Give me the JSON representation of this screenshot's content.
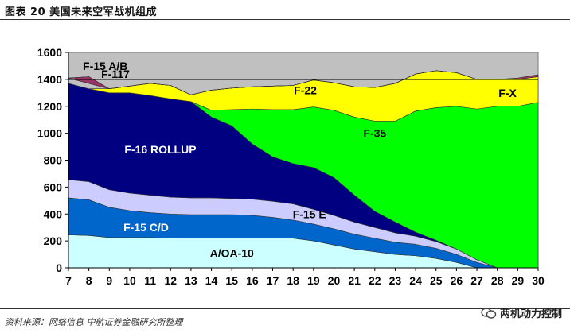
{
  "caption": "图表 20 美国未来空军战机组成",
  "source": "资料来源：网络信息 中航证券金融研究所整理",
  "watermark": {
    "text": "两机动力控制",
    "icon": "wechat-icon"
  },
  "chart_data": {
    "type": "area",
    "stacked": true,
    "title": "",
    "xlabel": "",
    "ylabel": "",
    "x": [
      "7",
      "8",
      "9",
      "10",
      "11",
      "12",
      "13",
      "14",
      "15",
      "16",
      "17",
      "18",
      "19",
      "20",
      "21",
      "22",
      "23",
      "24",
      "25",
      "26",
      "27",
      "28",
      "29",
      "30"
    ],
    "ylim": [
      0,
      1600
    ],
    "yticks": [
      0,
      200,
      400,
      600,
      800,
      1000,
      1200,
      1400,
      1600
    ],
    "reference_line": 1400,
    "grid": false,
    "background": "#c0c0c0",
    "series": [
      {
        "name": "A/OA-10",
        "color": "#ccffff",
        "values": [
          245,
          240,
          225,
          225,
          225,
          220,
          220,
          220,
          220,
          220,
          220,
          220,
          200,
          170,
          140,
          120,
          100,
          90,
          70,
          40,
          0,
          0,
          0,
          0
        ]
      },
      {
        "name": "F-15 C/D",
        "color": "#0066cc",
        "values": [
          275,
          265,
          225,
          200,
          185,
          180,
          175,
          175,
          175,
          170,
          155,
          135,
          125,
          120,
          110,
          100,
          90,
          85,
          75,
          60,
          40,
          0,
          0,
          0
        ]
      },
      {
        "name": "F-15 E",
        "color": "#ccccff",
        "values": [
          135,
          135,
          130,
          130,
          130,
          125,
          125,
          125,
          120,
          120,
          120,
          120,
          110,
          100,
          90,
          80,
          70,
          60,
          50,
          40,
          20,
          0,
          0,
          0
        ]
      },
      {
        "name": "F-16 ROLLUP",
        "color": "#000080",
        "values": [
          715,
          690,
          720,
          745,
          740,
          730,
          715,
          600,
          540,
          410,
          330,
          300,
          310,
          280,
          200,
          120,
          80,
          30,
          10,
          0,
          0,
          0,
          0,
          0
        ]
      },
      {
        "name": "F-35",
        "color": "#00ff00",
        "values": [
          0,
          0,
          0,
          0,
          0,
          0,
          0,
          50,
          120,
          260,
          350,
          400,
          450,
          500,
          580,
          670,
          750,
          900,
          985,
          1060,
          1120,
          1200,
          1200,
          1230
        ]
      },
      {
        "name": "F-22",
        "color": "#ffff00",
        "values": [
          0,
          0,
          30,
          50,
          90,
          100,
          50,
          150,
          160,
          165,
          175,
          180,
          200,
          205,
          225,
          250,
          280,
          275,
          275,
          250,
          220,
          200,
          200,
          190
        ]
      },
      {
        "name": "F-117",
        "color": "#c0c0c0",
        "values": [
          40,
          40,
          0,
          0,
          0,
          0,
          0,
          0,
          0,
          0,
          0,
          0,
          0,
          0,
          0,
          0,
          0,
          0,
          0,
          0,
          0,
          0,
          0,
          0
        ]
      },
      {
        "name": "F-15 A/B",
        "color": "#993366",
        "values": [
          0,
          50,
          0,
          0,
          0,
          0,
          0,
          0,
          0,
          0,
          0,
          0,
          0,
          0,
          0,
          0,
          0,
          0,
          0,
          0,
          0,
          0,
          0,
          0
        ]
      },
      {
        "name": "F-X",
        "color": "#993366",
        "values": [
          0,
          0,
          0,
          0,
          0,
          0,
          0,
          0,
          0,
          0,
          0,
          0,
          0,
          0,
          0,
          0,
          0,
          0,
          0,
          0,
          0,
          0,
          10,
          15
        ]
      }
    ],
    "series_labels": [
      {
        "name": "F-15 A/B",
        "x": "8.8",
        "y": 1500,
        "color": "#000000"
      },
      {
        "name": "F-117",
        "x": "9.3",
        "y": 1440,
        "color": "#000000"
      },
      {
        "name": "F-22",
        "x": "18.6",
        "y": 1320,
        "color": "#000000"
      },
      {
        "name": "F-X",
        "x": "28.5",
        "y": 1300,
        "color": "#000000"
      },
      {
        "name": "F-35",
        "x": "22.0",
        "y": 1000,
        "color": "#000000"
      },
      {
        "name": "F-16 ROLLUP",
        "x": "11.5",
        "y": 880,
        "color": "#ffffff"
      },
      {
        "name": "F-15 E",
        "x": "18.8",
        "y": 400,
        "color": "#000000"
      },
      {
        "name": "F-15 C/D",
        "x": "10.8",
        "y": 300,
        "color": "#ffffff"
      },
      {
        "name": "A/OA-10",
        "x": "15.0",
        "y": 110,
        "color": "#000000"
      }
    ]
  }
}
